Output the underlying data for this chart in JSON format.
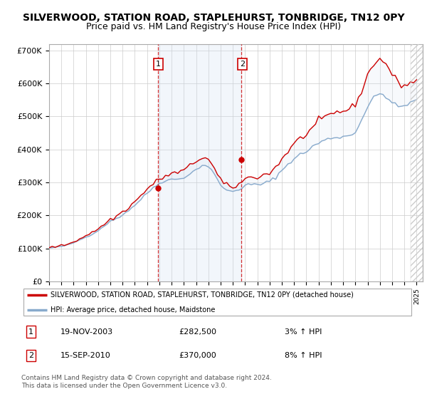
{
  "title": "SILVERWOOD, STATION ROAD, STAPLEHURST, TONBRIDGE, TN12 0PY",
  "subtitle": "Price paid vs. HM Land Registry's House Price Index (HPI)",
  "ylim": [
    0,
    720000
  ],
  "yticks": [
    0,
    100000,
    200000,
    300000,
    400000,
    500000,
    600000,
    700000
  ],
  "ytick_labels": [
    "£0",
    "£100K",
    "£200K",
    "£300K",
    "£400K",
    "£500K",
    "£600K",
    "£700K"
  ],
  "xlim_start": 1995,
  "xlim_end": 2025.5,
  "hpi_x": [
    1995.0,
    1995.25,
    1995.5,
    1995.75,
    1996.0,
    1996.25,
    1996.5,
    1996.75,
    1997.0,
    1997.25,
    1997.5,
    1997.75,
    1998.0,
    1998.25,
    1998.5,
    1998.75,
    1999.0,
    1999.25,
    1999.5,
    1999.75,
    2000.0,
    2000.25,
    2000.5,
    2000.75,
    2001.0,
    2001.25,
    2001.5,
    2001.75,
    2002.0,
    2002.25,
    2002.5,
    2002.75,
    2003.0,
    2003.25,
    2003.5,
    2003.75,
    2004.0,
    2004.25,
    2004.5,
    2004.75,
    2005.0,
    2005.25,
    2005.5,
    2005.75,
    2006.0,
    2006.25,
    2006.5,
    2006.75,
    2007.0,
    2007.25,
    2007.5,
    2007.75,
    2008.0,
    2008.25,
    2008.5,
    2008.75,
    2009.0,
    2009.25,
    2009.5,
    2009.75,
    2010.0,
    2010.25,
    2010.5,
    2010.75,
    2011.0,
    2011.25,
    2011.5,
    2011.75,
    2012.0,
    2012.25,
    2012.5,
    2012.75,
    2013.0,
    2013.25,
    2013.5,
    2013.75,
    2014.0,
    2014.25,
    2014.5,
    2014.75,
    2015.0,
    2015.25,
    2015.5,
    2015.75,
    2016.0,
    2016.25,
    2016.5,
    2016.75,
    2017.0,
    2017.25,
    2017.5,
    2017.75,
    2018.0,
    2018.25,
    2018.5,
    2018.75,
    2019.0,
    2019.25,
    2019.5,
    2019.75,
    2020.0,
    2020.25,
    2020.5,
    2020.75,
    2021.0,
    2021.25,
    2021.5,
    2021.75,
    2022.0,
    2022.25,
    2022.5,
    2022.75,
    2023.0,
    2023.25,
    2023.5,
    2023.75,
    2024.0,
    2024.25,
    2024.5,
    2024.75,
    2025.0
  ],
  "hpi_y": [
    101000,
    102000,
    103000,
    104000,
    106000,
    108000,
    110000,
    113000,
    117000,
    121000,
    126000,
    130000,
    134000,
    138000,
    143000,
    148000,
    154000,
    161000,
    168000,
    175000,
    181000,
    186000,
    191000,
    196000,
    202000,
    209000,
    216000,
    223000,
    231000,
    240000,
    249000,
    258000,
    267000,
    276000,
    284000,
    291000,
    297000,
    302000,
    306000,
    308000,
    309000,
    309000,
    310000,
    312000,
    315000,
    320000,
    326000,
    332000,
    339000,
    346000,
    351000,
    352000,
    348000,
    338000,
    323000,
    307000,
    293000,
    283000,
    276000,
    273000,
    274000,
    276000,
    280000,
    285000,
    289000,
    292000,
    293000,
    293000,
    293000,
    294000,
    296000,
    299000,
    303000,
    309000,
    317000,
    326000,
    336000,
    346000,
    356000,
    365000,
    372000,
    378000,
    384000,
    389000,
    394000,
    401000,
    408000,
    414000,
    419000,
    424000,
    428000,
    431000,
    434000,
    436000,
    437000,
    438000,
    439000,
    440000,
    442000,
    445000,
    455000,
    470000,
    490000,
    510000,
    528000,
    544000,
    556000,
    564000,
    568000,
    567000,
    561000,
    551000,
    541000,
    534000,
    530000,
    530000,
    533000,
    537000,
    541000,
    545000,
    549000
  ],
  "red_x": [
    1995.0,
    1995.25,
    1995.5,
    1995.75,
    1996.0,
    1996.25,
    1996.5,
    1996.75,
    1997.0,
    1997.25,
    1997.5,
    1997.75,
    1998.0,
    1998.25,
    1998.5,
    1998.75,
    1999.0,
    1999.25,
    1999.5,
    1999.75,
    2000.0,
    2000.25,
    2000.5,
    2000.75,
    2001.0,
    2001.25,
    2001.5,
    2001.75,
    2002.0,
    2002.25,
    2002.5,
    2002.75,
    2003.0,
    2003.25,
    2003.5,
    2003.75,
    2004.0,
    2004.25,
    2004.5,
    2004.75,
    2005.0,
    2005.25,
    2005.5,
    2005.75,
    2006.0,
    2006.25,
    2006.5,
    2006.75,
    2007.0,
    2007.25,
    2007.5,
    2007.75,
    2008.0,
    2008.25,
    2008.5,
    2008.75,
    2009.0,
    2009.25,
    2009.5,
    2009.75,
    2010.0,
    2010.25,
    2010.5,
    2010.75,
    2011.0,
    2011.25,
    2011.5,
    2011.75,
    2012.0,
    2012.25,
    2012.5,
    2012.75,
    2013.0,
    2013.25,
    2013.5,
    2013.75,
    2014.0,
    2014.25,
    2014.5,
    2014.75,
    2015.0,
    2015.25,
    2015.5,
    2015.75,
    2016.0,
    2016.25,
    2016.5,
    2016.75,
    2017.0,
    2017.25,
    2017.5,
    2017.75,
    2018.0,
    2018.25,
    2018.5,
    2018.75,
    2019.0,
    2019.25,
    2019.5,
    2019.75,
    2020.0,
    2020.25,
    2020.5,
    2020.75,
    2021.0,
    2021.25,
    2021.5,
    2021.75,
    2022.0,
    2022.25,
    2022.5,
    2022.75,
    2023.0,
    2023.25,
    2023.5,
    2023.75,
    2024.0,
    2024.25,
    2024.5,
    2024.75,
    2025.0
  ],
  "red_y": [
    103000,
    104000,
    105000,
    106000,
    108000,
    110000,
    113000,
    116000,
    120000,
    124000,
    129000,
    134000,
    138000,
    143000,
    148000,
    153000,
    159000,
    166000,
    173000,
    180000,
    186000,
    192000,
    198000,
    204000,
    210000,
    217000,
    225000,
    233000,
    241000,
    250000,
    260000,
    270000,
    279000,
    288000,
    296000,
    303000,
    308000,
    314000,
    319000,
    323000,
    326000,
    328000,
    330000,
    333000,
    337000,
    343000,
    350000,
    357000,
    364000,
    371000,
    375000,
    375000,
    369000,
    356000,
    340000,
    323000,
    308000,
    297000,
    290000,
    286000,
    287000,
    290000,
    295000,
    302000,
    308000,
    314000,
    317000,
    318000,
    318000,
    319000,
    321000,
    325000,
    330000,
    337000,
    347000,
    358000,
    371000,
    383000,
    395000,
    406000,
    416000,
    425000,
    433000,
    440000,
    447000,
    456000,
    465000,
    474000,
    482000,
    490000,
    496000,
    501000,
    506000,
    510000,
    513000,
    515000,
    517000,
    519000,
    522000,
    527000,
    538000,
    555000,
    577000,
    601000,
    624000,
    644000,
    659000,
    669000,
    673000,
    669000,
    659000,
    644000,
    628000,
    614000,
    603000,
    597000,
    595000,
    597000,
    601000,
    606000,
    612000
  ],
  "sale1_x": 2003.88,
  "sale1_y": 282500,
  "sale2_x": 2010.71,
  "sale2_y": 370000,
  "sale1_date": "19-NOV-2003",
  "sale1_price": "£282,500",
  "sale1_hpi": "3% ↑ HPI",
  "sale2_date": "15-SEP-2010",
  "sale2_price": "£370,000",
  "sale2_hpi": "8% ↑ HPI",
  "line_color_red": "#cc0000",
  "line_color_blue": "#88aacc",
  "shade_color": "#ccddf0",
  "grid_color": "#cccccc",
  "legend_label_red": "SILVERWOOD, STATION ROAD, STAPLEHURST, TONBRIDGE, TN12 0PY (detached house)",
  "legend_label_blue": "HPI: Average price, detached house, Maidstone",
  "footer_text": "Contains HM Land Registry data © Crown copyright and database right 2024.\nThis data is licensed under the Open Government Licence v3.0.",
  "title_fontsize": 10,
  "subtitle_fontsize": 9,
  "tick_fontsize": 8
}
